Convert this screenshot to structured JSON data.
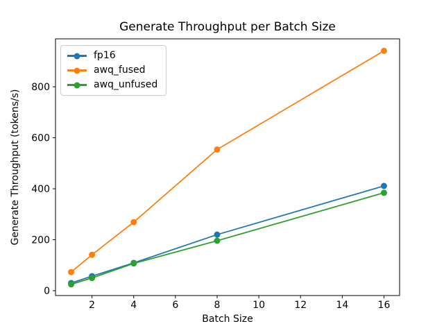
{
  "chart_data": {
    "type": "line",
    "title": "Generate Throughput per Batch Size",
    "xlabel": "Batch Size",
    "ylabel": "Generate Throughput (tokens/s)",
    "x": [
      1,
      2,
      4,
      8,
      16
    ],
    "series": [
      {
        "name": "fp16",
        "color": "#1f77b4",
        "values": [
          30,
          57,
          109,
          220,
          411
        ]
      },
      {
        "name": "awq_fused",
        "color": "#ff7f0e",
        "values": [
          73,
          141,
          269,
          554,
          941
        ]
      },
      {
        "name": "awq_unfused",
        "color": "#2ca02c",
        "values": [
          25,
          50,
          107,
          196,
          384
        ]
      }
    ],
    "xlim": [
      0.25,
      16.75
    ],
    "ylim": [
      -19,
      988
    ],
    "x_ticks": [
      2,
      4,
      6,
      8,
      10,
      12,
      14,
      16
    ],
    "y_ticks": [
      0,
      200,
      400,
      600,
      800
    ],
    "grid": false,
    "marker": "o",
    "legend_position": "upper left",
    "frame_color": "#000000",
    "background_color": "#ffffff"
  }
}
